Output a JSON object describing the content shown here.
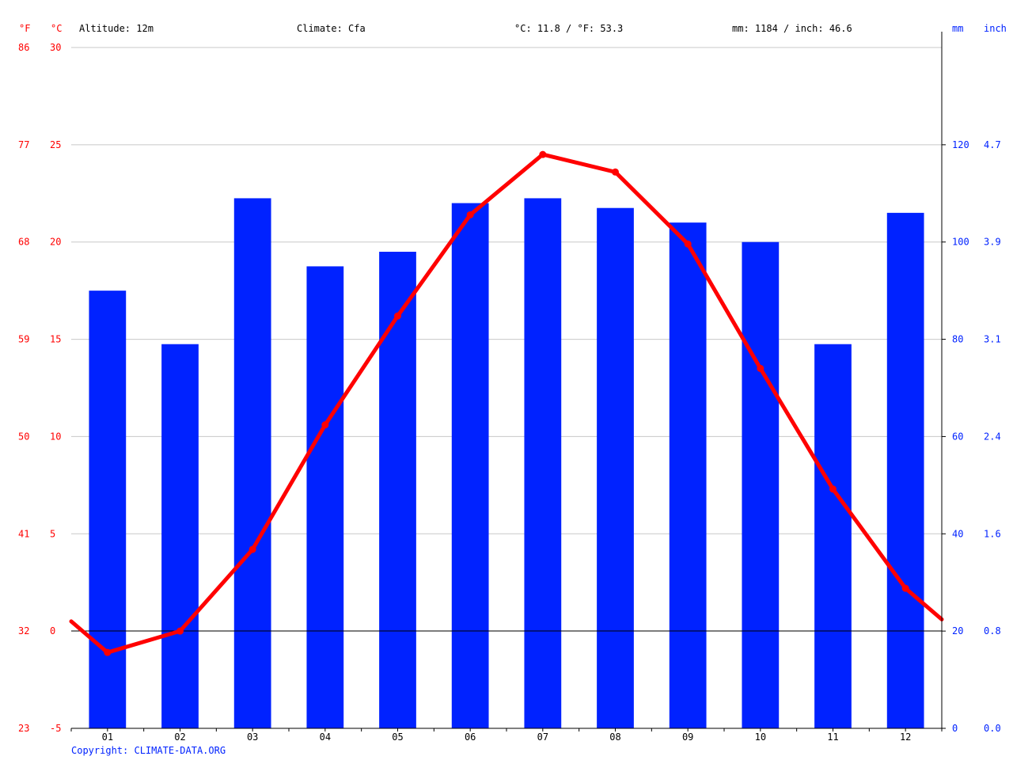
{
  "header": {
    "unit_f": "°F",
    "unit_c": "°C",
    "altitude": "Altitude: 12m",
    "climate": "Climate: Cfa",
    "temp_avg": "°C: 11.8 / °F: 53.3",
    "precip_total": "mm: 1184 / inch: 46.6",
    "unit_mm": "mm",
    "unit_inch": "inch"
  },
  "footer": {
    "copyright": "Copyright: CLIMATE-DATA.ORG"
  },
  "colors": {
    "temperature": "#ff0000",
    "precipitation": "#0022ff",
    "text": "#000000",
    "grid": "#c8c8c8"
  },
  "chart_data": {
    "type": "bar",
    "categories": [
      "01",
      "02",
      "03",
      "04",
      "05",
      "06",
      "07",
      "08",
      "09",
      "10",
      "11",
      "12"
    ],
    "grid": true,
    "axes": {
      "celsius": {
        "range": [
          -5,
          30
        ],
        "ticks": [
          "-5",
          "0",
          "5",
          "10",
          "15",
          "20",
          "25",
          "30"
        ]
      },
      "fahrenheit": {
        "ticks": [
          "23",
          "32",
          "41",
          "50",
          "59",
          "68",
          "77",
          "86"
        ]
      },
      "mm": {
        "range": [
          0,
          140
        ],
        "ticks": [
          "0",
          "20",
          "40",
          "60",
          "80",
          "100",
          "120"
        ]
      },
      "inch": {
        "ticks": [
          "0.0",
          "0.8",
          "1.6",
          "2.4",
          "3.1",
          "3.9",
          "4.7"
        ]
      }
    },
    "series": [
      {
        "type": "bar",
        "axis": "mm",
        "values": [
          90,
          79,
          109,
          95,
          98,
          108,
          109,
          107,
          104,
          100,
          79,
          106
        ]
      },
      {
        "type": "line",
        "axis": "celsius",
        "values": [
          -1.1,
          0.0,
          4.2,
          10.6,
          16.2,
          21.4,
          24.5,
          23.6,
          19.9,
          13.5,
          7.3,
          2.2
        ],
        "start_value": 0.5,
        "end_value": 0.6
      }
    ]
  }
}
